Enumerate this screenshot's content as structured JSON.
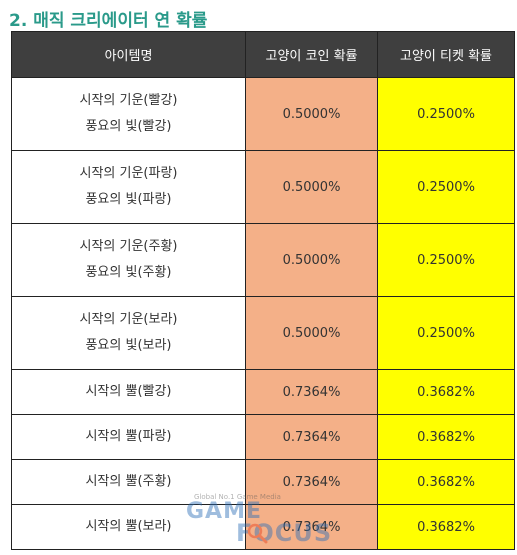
{
  "title": "2. 매직 크리에이터 연 확률",
  "table": {
    "headers": [
      "아이템명",
      "고양이 코인 확률",
      "고양이 티켓 확률"
    ],
    "rows": [
      {
        "name": [
          "시작의 기운(빨강)",
          "풍요의 빛(빨강)"
        ],
        "coin": "0.5000%",
        "ticket": "0.2500%"
      },
      {
        "name": [
          "시작의 기운(파랑)",
          "풍요의 빛(파랑)"
        ],
        "coin": "0.5000%",
        "ticket": "0.2500%"
      },
      {
        "name": [
          "시작의 기운(주황)",
          "풍요의 빛(주황)"
        ],
        "coin": "0.5000%",
        "ticket": "0.2500%"
      },
      {
        "name": [
          "시작의 기운(보라)",
          "풍요의 빛(보라)"
        ],
        "coin": "0.5000%",
        "ticket": "0.2500%"
      },
      {
        "name": [
          "시작의 뿔(빨강)"
        ],
        "coin": "0.7364%",
        "ticket": "0.3682%"
      },
      {
        "name": [
          "시작의 뿔(파랑)"
        ],
        "coin": "0.7364%",
        "ticket": "0.3682%"
      },
      {
        "name": [
          "시작의 뿔(주황)"
        ],
        "coin": "0.7364%",
        "ticket": "0.3682%"
      },
      {
        "name": [
          "시작의 뿔(보라)"
        ],
        "coin": "0.7364%",
        "ticket": "0.3682%"
      }
    ]
  },
  "watermark": {
    "tagline": "Global No.1 Game Media",
    "word1": "GAME",
    "word2": "FOCUS"
  },
  "colors": {
    "title": "#2a9a8a",
    "header_bg": "#3f3f3f",
    "coin_bg": "#f4b088",
    "ticket_bg": "#ffff00",
    "watermark": "#2d6fb8"
  }
}
